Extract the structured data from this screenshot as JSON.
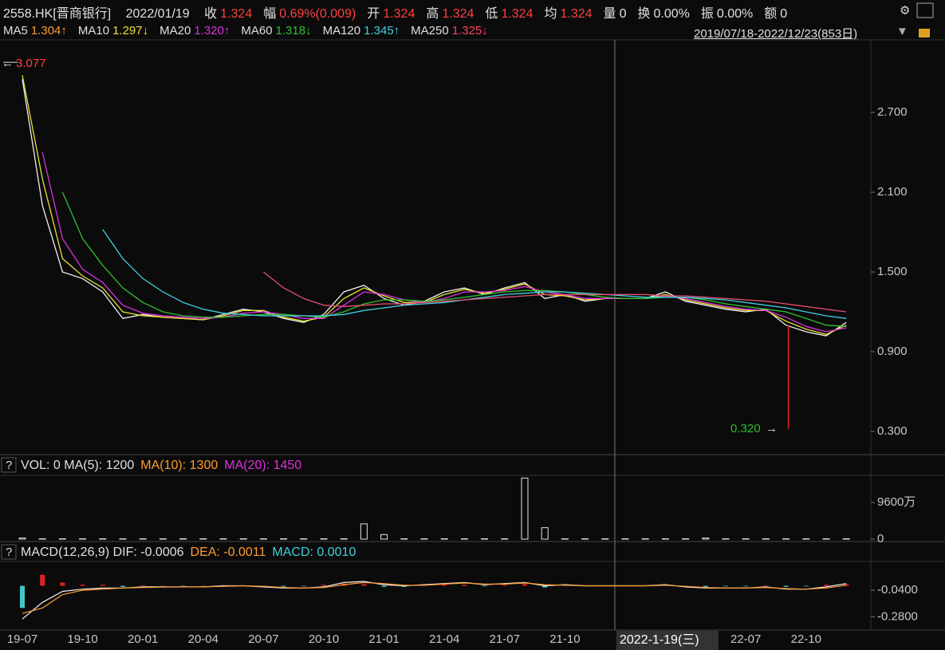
{
  "header": {
    "symbol": "2558.HK[晋商银行]",
    "date": "2022/01/19",
    "fields": [
      {
        "label": "收",
        "value": "1.324",
        "color": "#ff4040"
      },
      {
        "label": "幅",
        "value": "0.69%(0.009)",
        "color": "#ff4040"
      },
      {
        "label": "开",
        "value": "1.324",
        "color": "#ff4040"
      },
      {
        "label": "高",
        "value": "1.324",
        "color": "#ff4040"
      },
      {
        "label": "低",
        "value": "1.324",
        "color": "#ff4040"
      },
      {
        "label": "均",
        "value": "1.324",
        "color": "#ff4040"
      },
      {
        "label": "量",
        "value": "0",
        "color": "#e0e0e0"
      },
      {
        "label": "换",
        "value": "0.00%",
        "color": "#e0e0e0"
      },
      {
        "label": "振",
        "value": "0.00%",
        "color": "#e0e0e0"
      },
      {
        "label": "额",
        "value": "0",
        "color": "#e0e0e0"
      }
    ],
    "range": "2019/07/18-2022/12/23(853日)",
    "crosshair_label": "2022-1-19(三)"
  },
  "chart_data": [
    {
      "type": "line",
      "categories": [
        "19-07",
        null,
        null,
        "19-10",
        null,
        null,
        "20-01",
        null,
        null,
        "20-04",
        null,
        null,
        "20-07",
        null,
        null,
        "20-10",
        null,
        null,
        "21-01",
        null,
        null,
        "21-04",
        null,
        null,
        "21-07",
        null,
        null,
        "21-10",
        null,
        null,
        null,
        null,
        null,
        null,
        null,
        null,
        "22-07",
        null,
        null,
        "22-10",
        null,
        null
      ],
      "ylim": [
        0.126,
        3.216
      ],
      "yticks": [
        {
          "value": 2.7,
          "label": "2.700"
        },
        {
          "value": 2.1,
          "label": "2.100"
        },
        {
          "value": 1.5,
          "label": "1.500"
        },
        {
          "value": 0.9,
          "label": "0.900"
        },
        {
          "value": 0.3,
          "label": "0.300"
        }
      ],
      "high": 3.077,
      "low": {
        "value": 0.32,
        "label": "0.320"
      },
      "series": [
        {
          "name": "MA5",
          "legend_value": "1.304↑",
          "color": "#f0f0f0",
          "value_color": "#ff9a2e",
          "values": [
            2.95,
            2.0,
            1.5,
            1.45,
            1.35,
            1.15,
            1.18,
            1.16,
            1.15,
            1.14,
            1.18,
            1.22,
            1.2,
            1.15,
            1.12,
            1.18,
            1.35,
            1.4,
            1.3,
            1.25,
            1.28,
            1.35,
            1.38,
            1.33,
            1.38,
            1.42,
            1.3,
            1.33,
            1.28,
            1.3,
            1.3,
            1.3,
            1.35,
            1.28,
            1.25,
            1.22,
            1.2,
            1.22,
            1.1,
            1.05,
            1.02,
            1.12
          ]
        },
        {
          "name": "MA10",
          "legend_value": "1.297↓",
          "color": "#e8e030",
          "value_color": "#e8e030",
          "values": [
            2.98,
            2.2,
            1.6,
            1.47,
            1.38,
            1.2,
            1.17,
            1.16,
            1.15,
            1.14,
            1.17,
            1.21,
            1.21,
            1.16,
            1.13,
            1.16,
            1.3,
            1.38,
            1.32,
            1.27,
            1.27,
            1.33,
            1.37,
            1.34,
            1.37,
            1.41,
            1.33,
            1.32,
            1.29,
            1.3,
            1.3,
            1.3,
            1.33,
            1.29,
            1.26,
            1.23,
            1.21,
            1.21,
            1.13,
            1.07,
            1.03,
            1.1
          ]
        },
        {
          "name": "MA20",
          "legend_value": "1.320↑",
          "color": "#e030e0",
          "value_color": "#e030e0",
          "values": [
            null,
            2.4,
            1.75,
            1.52,
            1.42,
            1.25,
            1.19,
            1.17,
            1.16,
            1.15,
            1.16,
            1.19,
            1.2,
            1.18,
            1.15,
            1.15,
            1.25,
            1.35,
            1.33,
            1.29,
            1.27,
            1.3,
            1.35,
            1.35,
            1.36,
            1.39,
            1.35,
            1.33,
            1.3,
            1.3,
            1.3,
            1.3,
            1.32,
            1.3,
            1.27,
            1.24,
            1.22,
            1.21,
            1.16,
            1.09,
            1.05,
            1.08
          ]
        },
        {
          "name": "MA60",
          "legend_value": "1.318↓",
          "color": "#30c030",
          "value_color": "#30c030",
          "values": [
            null,
            null,
            2.1,
            1.75,
            1.55,
            1.38,
            1.27,
            1.2,
            1.17,
            1.16,
            1.16,
            1.17,
            1.18,
            1.18,
            1.17,
            1.16,
            1.2,
            1.26,
            1.29,
            1.29,
            1.28,
            1.29,
            1.31,
            1.33,
            1.35,
            1.36,
            1.36,
            1.35,
            1.33,
            1.31,
            1.3,
            1.3,
            1.31,
            1.31,
            1.29,
            1.26,
            1.24,
            1.22,
            1.2,
            1.15,
            1.1,
            1.09
          ]
        },
        {
          "name": "MA120",
          "legend_value": "1.345↑",
          "color": "#40d0e0",
          "value_color": "#40d0e0",
          "values": [
            null,
            null,
            null,
            null,
            1.82,
            1.6,
            1.45,
            1.35,
            1.27,
            1.22,
            1.19,
            1.18,
            1.17,
            1.17,
            1.17,
            1.17,
            1.18,
            1.21,
            1.23,
            1.25,
            1.26,
            1.27,
            1.29,
            1.31,
            1.33,
            1.34,
            1.35,
            1.35,
            1.34,
            1.33,
            1.32,
            1.31,
            1.31,
            1.31,
            1.3,
            1.29,
            1.27,
            1.25,
            1.23,
            1.2,
            1.17,
            1.15
          ]
        },
        {
          "name": "MA250",
          "legend_value": "1.325↓",
          "color": "#e05070",
          "value_color": "#ff4060",
          "values": [
            null,
            null,
            null,
            null,
            null,
            null,
            null,
            null,
            null,
            null,
            null,
            null,
            1.5,
            1.38,
            1.3,
            1.25,
            1.24,
            1.25,
            1.26,
            1.26,
            1.27,
            1.28,
            1.29,
            1.3,
            1.31,
            1.32,
            1.33,
            1.33,
            1.33,
            1.33,
            1.33,
            1.33,
            1.32,
            1.32,
            1.31,
            1.3,
            1.29,
            1.28,
            1.26,
            1.24,
            1.22,
            1.2
          ]
        }
      ]
    },
    {
      "type": "bar",
      "color": "#e0e0e0",
      "legend_items": [
        {
          "text": "VOL: 0 MA(5): 1200",
          "color": "#e0e0e0"
        },
        {
          "text": "MA(10): 1300",
          "color": "#ff9a2e"
        },
        {
          "text": "MA(20): 1450",
          "color": "#e030e0"
        }
      ],
      "ylim": [
        0,
        16500
      ],
      "yticks": [
        {
          "value": 9600,
          "label": "9600万"
        },
        0
      ],
      "values": [
        300,
        100,
        100,
        100,
        100,
        100,
        100,
        100,
        100,
        100,
        100,
        100,
        100,
        100,
        100,
        100,
        100,
        4000,
        1200,
        100,
        100,
        100,
        100,
        100,
        100,
        16000,
        3000,
        100,
        100,
        100,
        100,
        100,
        100,
        100,
        300,
        100,
        100,
        100,
        100,
        100,
        100,
        100
      ]
    },
    {
      "type": "macd",
      "up_color": "#e02020",
      "down_color": "#40c8c8",
      "legend_items": [
        {
          "text": "MACD(12,26,9) DIF: -0.0006",
          "color": "#e0e0e0"
        },
        {
          "text": "DEA: -0.0011",
          "color": "#ff9a2e"
        },
        {
          "text": "MACD: 0.0010",
          "color": "#40d0e0"
        }
      ],
      "ylim": [
        -0.4,
        0.22
      ],
      "yticks": [
        {
          "value": -0.04,
          "label": "-0.0400"
        },
        {
          "value": -0.28,
          "label": "-0.2800"
        }
      ],
      "values": [
        -0.2,
        0.1,
        0.03,
        0.01,
        0.01,
        -0.01,
        0.005,
        0.003,
        -0.004,
        0.003,
        0.006,
        0.005,
        -0.006,
        -0.008,
        -0.005,
        0.01,
        0.02,
        0.015,
        -0.01,
        -0.01,
        0.005,
        0.01,
        0.01,
        -0.005,
        0.008,
        0.015,
        -0.015,
        0.005,
        -0.005,
        0.002,
        0.001,
        0.003,
        0.008,
        -0.01,
        -0.01,
        -0.005,
        -0.005,
        0.005,
        -0.01,
        -0.005,
        0.01,
        0.015
      ],
      "dif": [
        -0.3,
        -0.15,
        -0.05,
        -0.03,
        -0.02,
        -0.02,
        -0.01,
        -0.01,
        -0.01,
        -0.01,
        0.0,
        0.0,
        -0.01,
        -0.02,
        -0.02,
        -0.01,
        0.03,
        0.04,
        0.01,
        0.0,
        0.01,
        0.02,
        0.03,
        0.01,
        0.02,
        0.03,
        0.0,
        0.01,
        0.0,
        0.0,
        0.0,
        0.0,
        0.01,
        -0.01,
        -0.02,
        -0.02,
        -0.02,
        -0.01,
        -0.03,
        -0.03,
        -0.01,
        0.02
      ],
      "dea": [
        -0.25,
        -0.2,
        -0.08,
        -0.04,
        -0.03,
        -0.02,
        -0.015,
        -0.012,
        -0.01,
        -0.01,
        -0.005,
        0.0,
        -0.005,
        -0.015,
        -0.02,
        -0.015,
        0.01,
        0.03,
        0.02,
        0.005,
        0.005,
        0.015,
        0.025,
        0.015,
        0.015,
        0.025,
        0.01,
        0.005,
        0.0,
        0.0,
        0.0,
        0.0,
        0.005,
        -0.005,
        -0.015,
        -0.02,
        -0.02,
        -0.015,
        -0.025,
        -0.03,
        -0.02,
        0.005
      ]
    }
  ]
}
